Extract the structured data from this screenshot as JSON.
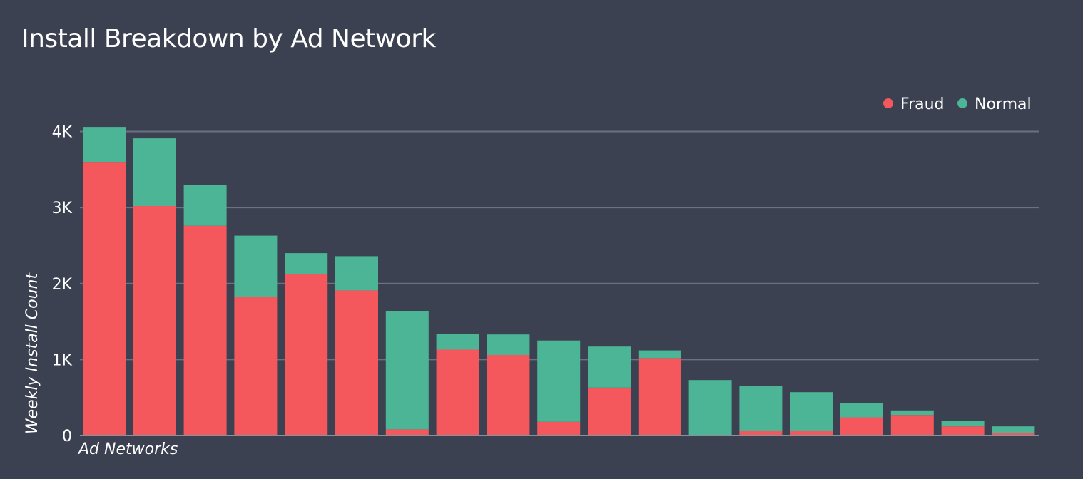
{
  "chart_data": {
    "type": "bar",
    "stacked": true,
    "title": "Install Breakdown by Ad Network",
    "xlabel": "Ad Networks",
    "ylabel": "Weekly Install Count",
    "ylim": [
      0,
      4000
    ],
    "yticks": [
      0,
      1000,
      2000,
      3000,
      4000
    ],
    "ytick_labels": [
      "0",
      "1K",
      "2K",
      "3K",
      "4K"
    ],
    "grid": true,
    "legend": "top-right",
    "categories": [
      "",
      "",
      "",
      "",
      "",
      "",
      "",
      "",
      "",
      "",
      "",
      "",
      "",
      "",
      "",
      "",
      "",
      "",
      ""
    ],
    "series": [
      {
        "name": "Fraud",
        "color": "#f4585d",
        "values": [
          3600,
          3020,
          2760,
          1820,
          2120,
          1910,
          80,
          1130,
          1060,
          180,
          630,
          1020,
          10,
          60,
          60,
          240,
          270,
          120,
          30
        ]
      },
      {
        "name": "Normal",
        "color": "#4bb596",
        "values": [
          460,
          890,
          540,
          810,
          280,
          450,
          1560,
          210,
          270,
          1070,
          540,
          100,
          720,
          590,
          510,
          190,
          60,
          70,
          90
        ]
      }
    ]
  }
}
